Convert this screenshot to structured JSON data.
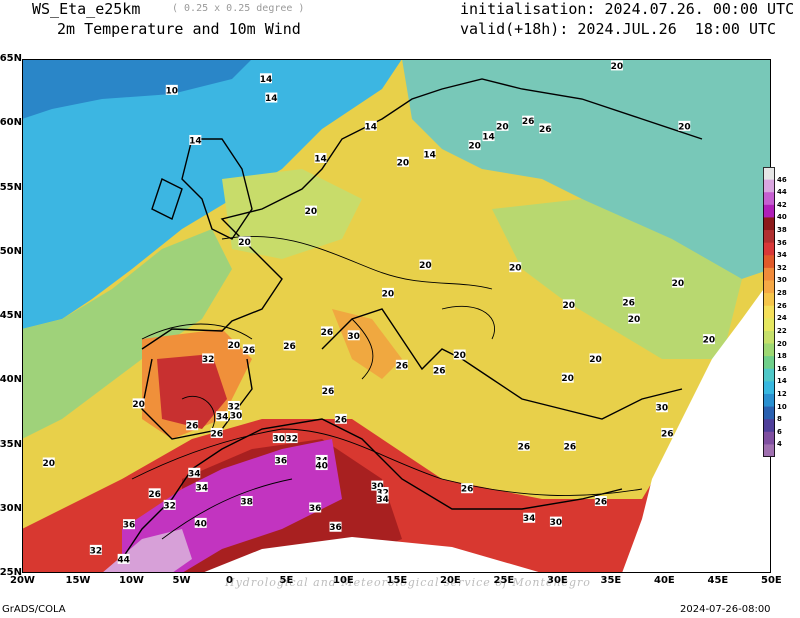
{
  "header": {
    "model": "WS_Eta_e25km",
    "resolution": "( 0.25 x 0.25 degree )",
    "field": "2m Temperature and 10m Wind",
    "init": "initialisation: 2024.07.26. 00:00 UTC",
    "valid": "valid(+18h): 2024.JUL.26  18:00 UTC"
  },
  "footer": {
    "left": "GrADS/COLA",
    "right": "2024-07-26-08:00",
    "watermark": "Hydrological and Meteorological service of Montenegro"
  },
  "axes": {
    "lon": [
      "20W",
      "15W",
      "10W",
      "5W",
      "0",
      "5E",
      "10E",
      "15E",
      "20E",
      "25E",
      "30E",
      "35E",
      "40E",
      "45E",
      "50E"
    ],
    "lat": [
      "65N",
      "60N",
      "55N",
      "50N",
      "45N",
      "40N",
      "35N",
      "30N",
      "25N"
    ]
  },
  "colorbar": {
    "labels": [
      "46",
      "44",
      "42",
      "40",
      "38",
      "36",
      "34",
      "32",
      "30",
      "28",
      "26",
      "24",
      "22",
      "20",
      "18",
      "16",
      "14",
      "12",
      "10",
      "8",
      "6",
      "4"
    ],
    "colors": [
      "#e6e6e6",
      "#d9a6e0",
      "#c55fd0",
      "#b020b8",
      "#8c1a1a",
      "#b03030",
      "#d83838",
      "#e05a2a",
      "#f08a3a",
      "#f5a845",
      "#f5c54a",
      "#f5e05a",
      "#e6e860",
      "#c6e06a",
      "#9ed873",
      "#6fcf8a",
      "#4fc8c8",
      "#38b8e0",
      "#2a90d0",
      "#2a60b0",
      "#4f3f9a",
      "#7f4fa0",
      "#a070b0"
    ]
  },
  "contour_labels": [
    {
      "t": "10",
      "lon": -6.0,
      "lat": 62.6
    },
    {
      "t": "14",
      "lon": -3.8,
      "lat": 58.7
    },
    {
      "t": "14",
      "lon": 2.8,
      "lat": 63.5
    },
    {
      "t": "14",
      "lon": 3.3,
      "lat": 62.0
    },
    {
      "t": "14",
      "lon": 12.6,
      "lat": 59.8
    },
    {
      "t": "14",
      "lon": 18.1,
      "lat": 57.6
    },
    {
      "t": "20",
      "lon": 15.6,
      "lat": 57.0
    },
    {
      "t": "20",
      "lon": 22.3,
      "lat": 58.3
    },
    {
      "t": "14",
      "lon": 23.6,
      "lat": 59.0
    },
    {
      "t": "20",
      "lon": 24.9,
      "lat": 59.8
    },
    {
      "t": "26",
      "lon": 27.3,
      "lat": 60.2
    },
    {
      "t": "26",
      "lon": 28.9,
      "lat": 59.6
    },
    {
      "t": "20",
      "lon": 35.6,
      "lat": 64.5
    },
    {
      "t": "20",
      "lon": 41.9,
      "lat": 59.8
    },
    {
      "t": "14",
      "lon": 7.9,
      "lat": 57.3
    },
    {
      "t": "20",
      "lon": 7.0,
      "lat": 53.2
    },
    {
      "t": "20",
      "lon": 0.8,
      "lat": 50.8
    },
    {
      "t": "20",
      "lon": 17.7,
      "lat": 49.0
    },
    {
      "t": "20",
      "lon": 14.2,
      "lat": 46.8
    },
    {
      "t": "20",
      "lon": 26.1,
      "lat": 48.8
    },
    {
      "t": "20",
      "lon": 41.3,
      "lat": 47.6
    },
    {
      "t": "20",
      "lon": 31.1,
      "lat": 45.9
    },
    {
      "t": "26",
      "lon": 36.7,
      "lat": 46.1
    },
    {
      "t": "20",
      "lon": 37.2,
      "lat": 44.8
    },
    {
      "t": "26",
      "lon": 5.0,
      "lat": 42.7
    },
    {
      "t": "26",
      "lon": 8.5,
      "lat": 43.8
    },
    {
      "t": "30",
      "lon": 11.0,
      "lat": 43.5
    },
    {
      "t": "20",
      "lon": -0.2,
      "lat": 42.8
    },
    {
      "t": "26",
      "lon": 1.2,
      "lat": 42.4
    },
    {
      "t": "32",
      "lon": -2.6,
      "lat": 41.7
    },
    {
      "t": "26",
      "lon": 15.5,
      "lat": 41.2
    },
    {
      "t": "26",
      "lon": 19.0,
      "lat": 40.8
    },
    {
      "t": "20",
      "lon": 20.9,
      "lat": 42.0
    },
    {
      "t": "20",
      "lon": 31.0,
      "lat": 40.2
    },
    {
      "t": "20",
      "lon": 33.6,
      "lat": 41.7
    },
    {
      "t": "20",
      "lon": 44.2,
      "lat": 43.2
    },
    {
      "t": "20",
      "lon": -9.1,
      "lat": 38.2
    },
    {
      "t": "32",
      "lon": -0.2,
      "lat": 38.0
    },
    {
      "t": "34",
      "lon": -1.3,
      "lat": 37.2
    },
    {
      "t": "30",
      "lon": -0.0,
      "lat": 37.3
    },
    {
      "t": "26",
      "lon": -4.1,
      "lat": 36.5
    },
    {
      "t": "26",
      "lon": -1.8,
      "lat": 35.9
    },
    {
      "t": "26",
      "lon": 9.8,
      "lat": 37.0
    },
    {
      "t": "26",
      "lon": 8.6,
      "lat": 39.2
    },
    {
      "t": "30",
      "lon": 4.0,
      "lat": 35.5
    },
    {
      "t": "32",
      "lon": 5.2,
      "lat": 35.5
    },
    {
      "t": "36",
      "lon": 4.2,
      "lat": 33.8
    },
    {
      "t": "34",
      "lon": 8.0,
      "lat": 33.8
    },
    {
      "t": "40",
      "lon": 8.0,
      "lat": 33.4
    },
    {
      "t": "26",
      "lon": 26.9,
      "lat": 34.9
    },
    {
      "t": "26",
      "lon": 31.2,
      "lat": 34.9
    },
    {
      "t": "30",
      "lon": 39.8,
      "lat": 37.9
    },
    {
      "t": "26",
      "lon": 40.3,
      "lat": 35.9
    },
    {
      "t": "26",
      "lon": 34.1,
      "lat": 30.6
    },
    {
      "t": "34",
      "lon": -3.9,
      "lat": 32.8
    },
    {
      "t": "34",
      "lon": -3.2,
      "lat": 31.7
    },
    {
      "t": "26",
      "lon": -7.6,
      "lat": 31.2
    },
    {
      "t": "32",
      "lon": -6.2,
      "lat": 30.3
    },
    {
      "t": "38",
      "lon": 1.0,
      "lat": 30.6
    },
    {
      "t": "36",
      "lon": 7.4,
      "lat": 30.1
    },
    {
      "t": "30",
      "lon": 13.2,
      "lat": 31.8
    },
    {
      "t": "32",
      "lon": 13.7,
      "lat": 31.3
    },
    {
      "t": "34",
      "lon": 13.7,
      "lat": 30.8
    },
    {
      "t": "26",
      "lon": 21.6,
      "lat": 31.6
    },
    {
      "t": "34",
      "lon": 27.4,
      "lat": 29.3
    },
    {
      "t": "30",
      "lon": 29.9,
      "lat": 29.0
    },
    {
      "t": "40",
      "lon": -3.3,
      "lat": 28.9
    },
    {
      "t": "36",
      "lon": 9.3,
      "lat": 28.6
    },
    {
      "t": "36",
      "lon": -10.0,
      "lat": 28.8
    },
    {
      "t": "32",
      "lon": -13.1,
      "lat": 26.8
    },
    {
      "t": "44",
      "lon": -10.5,
      "lat": 26.1
    },
    {
      "t": "20",
      "lon": -17.5,
      "lat": 33.6
    }
  ]
}
